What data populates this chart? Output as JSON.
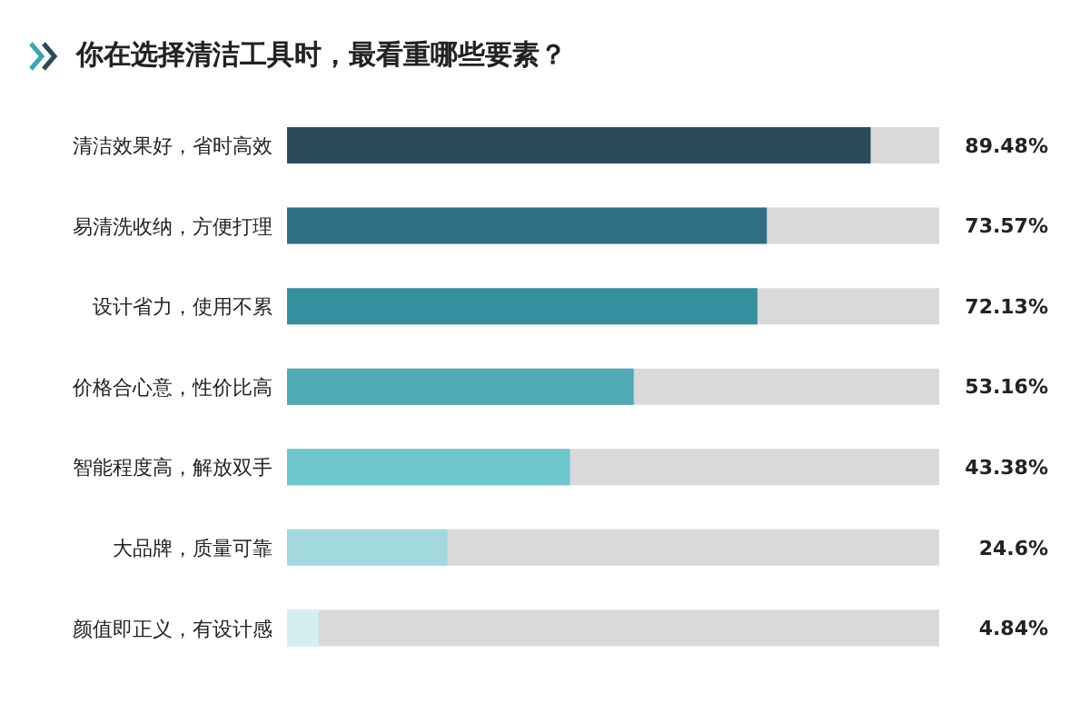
{
  "chart_data": {
    "type": "bar",
    "orientation": "horizontal",
    "title": "你在选择清洁工具时，最看重哪些要素？",
    "categories": [
      "清洁效果好，省时高效",
      "易清洗收纳，方便打理",
      "设计省力，使用不累",
      "价格合心意，性价比高",
      "智能程度高，解放双手",
      "大品牌，质量可靠",
      "颜值即正义，有设计感"
    ],
    "values": [
      89.48,
      73.57,
      72.13,
      53.16,
      43.38,
      24.6,
      4.84
    ],
    "value_labels": [
      "89.48%",
      "73.57%",
      "72.13%",
      "53.16%",
      "43.38%",
      "24.6%",
      "4.84%"
    ],
    "colors": [
      "#2b4a5c",
      "#2e6f85",
      "#34909f",
      "#4eaab3",
      "#6cc6cc",
      "#a2d9dc",
      "#d4eff1"
    ],
    "xlim": [
      0,
      100
    ]
  }
}
